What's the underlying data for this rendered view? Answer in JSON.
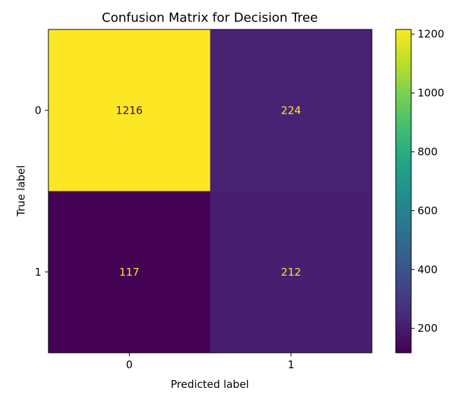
{
  "chart_data": {
    "type": "heatmap",
    "title": "Confusion Matrix for Decision Tree",
    "xlabel": "Predicted label",
    "ylabel": "True label",
    "x_categories": [
      "0",
      "1"
    ],
    "y_categories": [
      "0",
      "1"
    ],
    "values": [
      [
        1216,
        224
      ],
      [
        117,
        212
      ]
    ],
    "cell_label_colors": [
      [
        "#440154",
        "#fde725"
      ],
      [
        "#fde725",
        "#fde725"
      ]
    ],
    "colormap": "viridis",
    "colorbar": {
      "range": [
        117,
        1216
      ],
      "ticks": [
        200,
        400,
        600,
        800,
        1000,
        1200
      ],
      "tick_labels": [
        "200",
        "400",
        "600",
        "800",
        "1000",
        "1200"
      ]
    },
    "grid": false
  }
}
